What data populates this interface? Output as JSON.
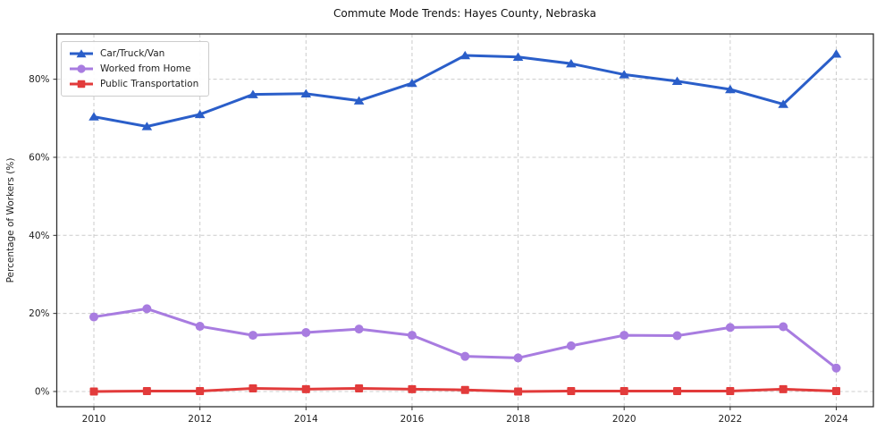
{
  "chart_data": {
    "type": "line",
    "title": "Commute Mode Trends: Hayes County, Nebraska",
    "xlabel": "",
    "ylabel": "Percentage of Workers (%)",
    "x": [
      2010,
      2011,
      2012,
      2013,
      2014,
      2015,
      2016,
      2017,
      2018,
      2019,
      2020,
      2021,
      2022,
      2023,
      2024
    ],
    "series": [
      {
        "name": "Car/Truck/Van",
        "color": "#2a5ec9",
        "marker": "triangle",
        "values": [
          70.4,
          67.9,
          71.0,
          76.1,
          76.3,
          74.5,
          79.0,
          86.1,
          85.7,
          84.0,
          81.2,
          79.5,
          77.4,
          73.6,
          86.5
        ]
      },
      {
        "name": "Worked from Home",
        "color": "#a87ce0",
        "marker": "circle",
        "values": [
          19.1,
          21.2,
          16.7,
          14.4,
          15.1,
          16.0,
          14.4,
          9.0,
          8.6,
          11.7,
          14.4,
          14.3,
          16.4,
          16.6,
          6.0
        ]
      },
      {
        "name": "Public Transportation",
        "color": "#e23b3b",
        "marker": "square",
        "values": [
          0.0,
          0.1,
          0.1,
          0.8,
          0.6,
          0.8,
          0.6,
          0.4,
          0.0,
          0.1,
          0.1,
          0.1,
          0.1,
          0.6,
          0.1
        ]
      }
    ],
    "xticks": [
      2010,
      2012,
      2014,
      2016,
      2018,
      2020,
      2022,
      2024
    ],
    "yticks": [
      0,
      20,
      40,
      60,
      80
    ],
    "ytick_labels": [
      "0%",
      "20%",
      "40%",
      "60%",
      "80%"
    ],
    "xlim": [
      2009.3,
      2024.7
    ],
    "ylim": [
      -3.9,
      91.6
    ],
    "grid": true,
    "grid_color": "#cccccc",
    "legend_position": "upper left"
  }
}
